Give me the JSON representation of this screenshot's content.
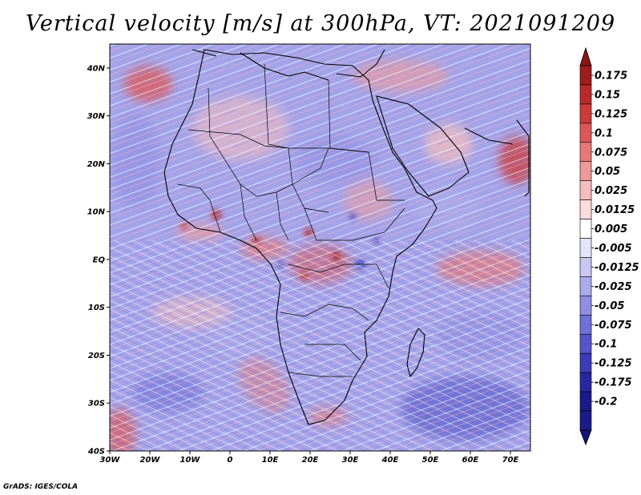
{
  "title": "Vertical velocity [m/s] at 300hPa, VT: 2021091209",
  "credit": "GrADS: IGES/COLA",
  "map": {
    "extent": {
      "lon_min": -30,
      "lon_max": 75,
      "lat_min": -40,
      "lat_max": 45
    },
    "lat_ticks": [
      {
        "value": 40,
        "label": "40N"
      },
      {
        "value": 30,
        "label": "30N"
      },
      {
        "value": 20,
        "label": "20N"
      },
      {
        "value": 10,
        "label": "10N"
      },
      {
        "value": 0,
        "label": "EQ"
      },
      {
        "value": -10,
        "label": "10S"
      },
      {
        "value": -20,
        "label": "20S"
      },
      {
        "value": -30,
        "label": "30S"
      },
      {
        "value": -40,
        "label": "40S"
      }
    ],
    "lon_ticks": [
      {
        "value": -30,
        "label": "30W"
      },
      {
        "value": -20,
        "label": "20W"
      },
      {
        "value": -10,
        "label": "10W"
      },
      {
        "value": 0,
        "label": "0"
      },
      {
        "value": 10,
        "label": "10E"
      },
      {
        "value": 20,
        "label": "20E"
      },
      {
        "value": 30,
        "label": "30E"
      },
      {
        "value": 40,
        "label": "40E"
      },
      {
        "value": 50,
        "label": "50E"
      },
      {
        "value": 60,
        "label": "60E"
      },
      {
        "value": 70,
        "label": "70E"
      }
    ]
  },
  "colorbar": {
    "levels": [
      {
        "label": "0.175",
        "color": "#9e1d1d"
      },
      {
        "label": "0.15",
        "color": "#b82a2a"
      },
      {
        "label": "0.125",
        "color": "#cc3b3b"
      },
      {
        "label": "0.1",
        "color": "#dc5757"
      },
      {
        "label": "0.075",
        "color": "#e67878"
      },
      {
        "label": "0.05",
        "color": "#ee9a9a"
      },
      {
        "label": "0.025",
        "color": "#f5bdbd"
      },
      {
        "label": "0.0125",
        "color": "#fadcdc"
      },
      {
        "label": "0.005",
        "color": "#ffffff"
      },
      {
        "label": "-0.005",
        "color": "#e4e4fa"
      },
      {
        "label": "-0.0125",
        "color": "#c8c8f3"
      },
      {
        "label": "-0.025",
        "color": "#ababeb"
      },
      {
        "label": "-0.05",
        "color": "#8e8ee2"
      },
      {
        "label": "-0.075",
        "color": "#7070d6"
      },
      {
        "label": "-0.1",
        "color": "#5555c8"
      },
      {
        "label": "-0.125",
        "color": "#3c3cb6"
      },
      {
        "label": "-0.175",
        "color": "#2828a0"
      },
      {
        "label": "-0.2",
        "color": "#1a1a88"
      }
    ],
    "top_color": "#8a1414",
    "bottom_color": "#14147a",
    "background_color": "#a3a3ea"
  }
}
